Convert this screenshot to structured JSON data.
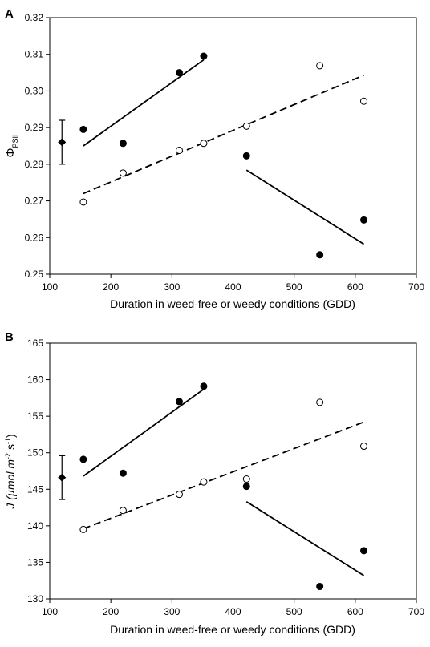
{
  "chart_data": [
    {
      "panel_label": "A",
      "type": "scatter",
      "xlabel": "Duration in weed-free or weedy conditions (GDD)",
      "ylabel_main": "Φ",
      "ylabel_sub": "PSII",
      "xlim": [
        100,
        700
      ],
      "ylim": [
        0.25,
        0.32
      ],
      "x_ticks": [
        100,
        200,
        300,
        400,
        500,
        600,
        700
      ],
      "y_ticks": [
        "0.25",
        "0.26",
        "0.27",
        "0.28",
        "0.29",
        "0.30",
        "0.31",
        "0.32"
      ],
      "grid": false,
      "control_point": {
        "x": 120,
        "y": 0.286,
        "err": 0.006
      },
      "series": [
        {
          "marker": "filled",
          "points": [
            [
              155,
              0.2895
            ],
            [
              220,
              0.2857
            ],
            [
              312,
              0.305
            ],
            [
              352,
              0.3095
            ],
            [
              422,
              0.2823
            ],
            [
              542,
              0.2553
            ],
            [
              614,
              0.2648
            ]
          ]
        },
        {
          "marker": "open",
          "points": [
            [
              155,
              0.2697
            ],
            [
              220,
              0.2776
            ],
            [
              312,
              0.2838
            ],
            [
              352,
              0.2857
            ],
            [
              422,
              0.2904
            ],
            [
              542,
              0.3069
            ],
            [
              614,
              0.2972
            ]
          ]
        }
      ],
      "fits": [
        {
          "style": "solid",
          "from": [
            155,
            0.285
          ],
          "to": [
            352,
            0.3085
          ]
        },
        {
          "style": "solid",
          "from": [
            422,
            0.2784
          ],
          "to": [
            614,
            0.2582
          ]
        },
        {
          "style": "dashed",
          "from": [
            155,
            0.272
          ],
          "to": [
            614,
            0.3043
          ]
        }
      ]
    },
    {
      "panel_label": "B",
      "type": "scatter",
      "xlabel": "Duration in weed-free or weedy conditions (GDD)",
      "ylabel_main": "J (µmol m",
      "ylabel_sup1": "-2",
      "ylabel_mid": " s",
      "ylabel_sup2": "-1",
      "ylabel_end": ")",
      "xlim": [
        100,
        700
      ],
      "ylim": [
        130,
        165
      ],
      "x_ticks": [
        100,
        200,
        300,
        400,
        500,
        600,
        700
      ],
      "y_ticks": [
        "130",
        "135",
        "140",
        "145",
        "150",
        "155",
        "160",
        "165"
      ],
      "grid": false,
      "control_point": {
        "x": 120,
        "y": 146.6,
        "err": 3.0
      },
      "series": [
        {
          "marker": "filled",
          "points": [
            [
              155,
              149.1
            ],
            [
              220,
              147.2
            ],
            [
              312,
              157.0
            ],
            [
              352,
              159.1
            ],
            [
              422,
              145.4
            ],
            [
              542,
              131.7
            ],
            [
              614,
              136.6
            ]
          ]
        },
        {
          "marker": "open",
          "points": [
            [
              155,
              139.5
            ],
            [
              220,
              142.1
            ],
            [
              312,
              144.3
            ],
            [
              352,
              146.0
            ],
            [
              422,
              146.4
            ],
            [
              542,
              156.9
            ],
            [
              614,
              150.9
            ]
          ]
        }
      ],
      "fits": [
        {
          "style": "solid",
          "from": [
            155,
            146.8
          ],
          "to": [
            352,
            158.7
          ]
        },
        {
          "style": "solid",
          "from": [
            422,
            143.3
          ],
          "to": [
            614,
            133.2
          ]
        },
        {
          "style": "dashed",
          "from": [
            155,
            139.6
          ],
          "to": [
            614,
            154.2
          ]
        }
      ]
    }
  ]
}
